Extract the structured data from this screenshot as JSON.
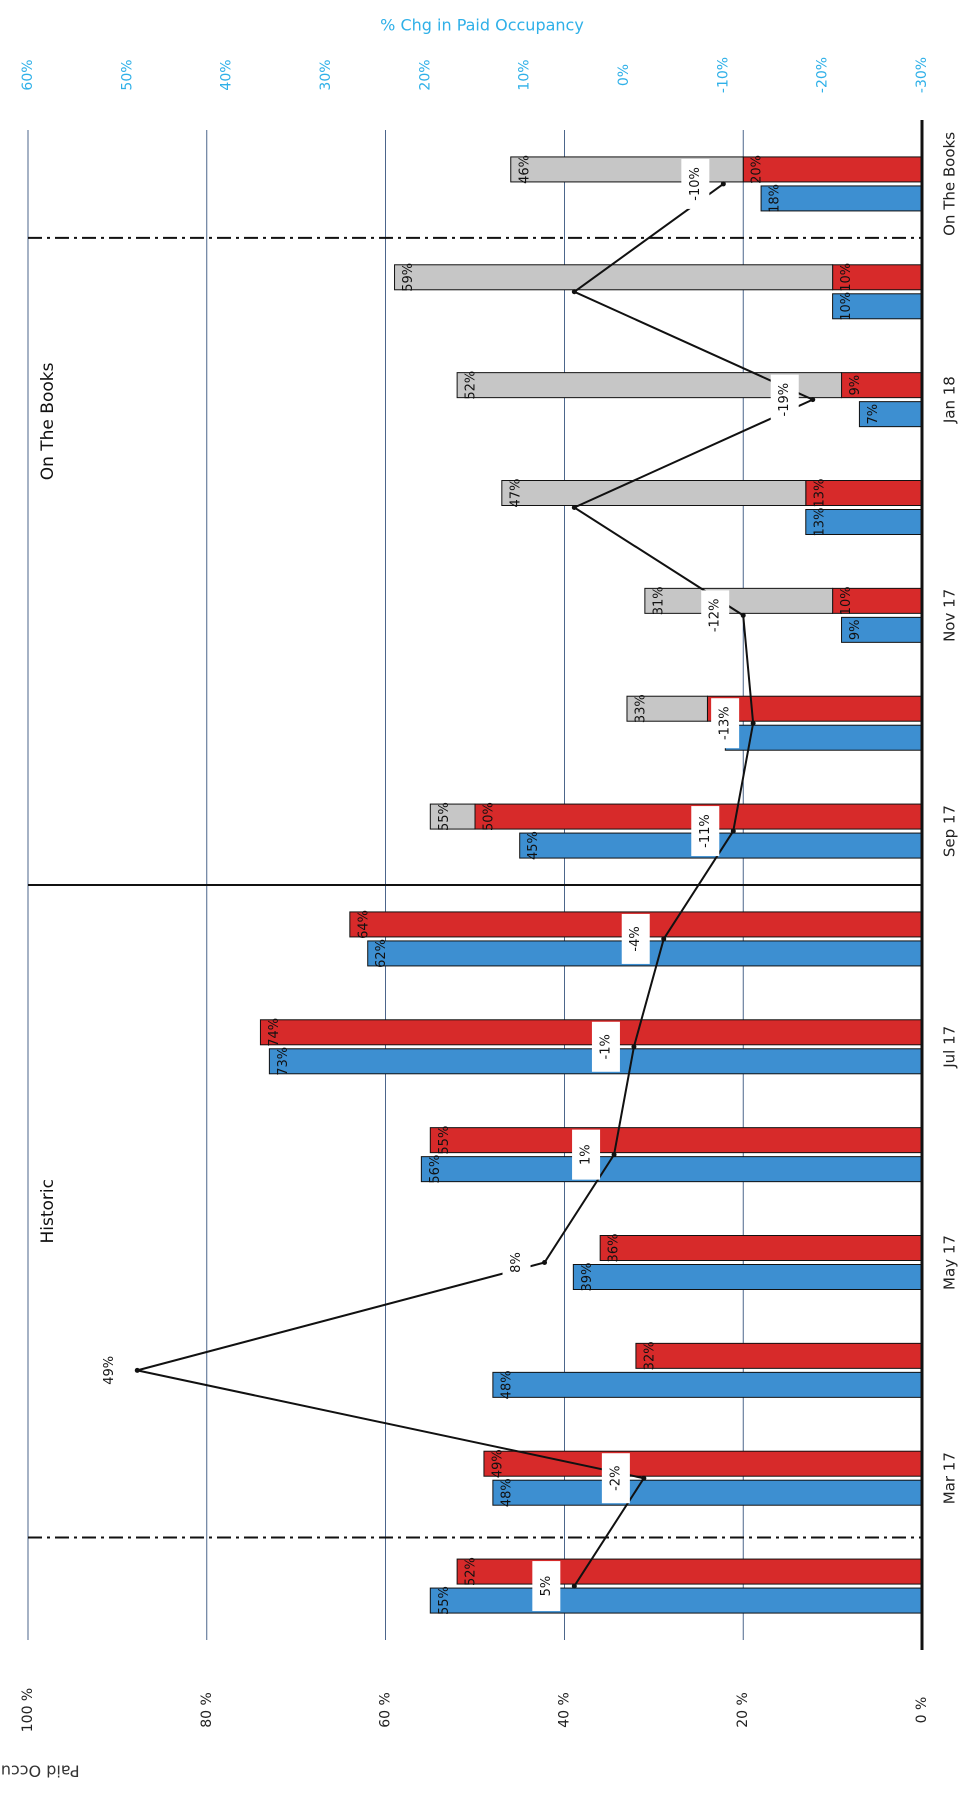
{
  "colors": {
    "last_year": "#3d8fd1",
    "this_year": "#d72a2a",
    "on_books": "#c6c6c6",
    "right_axis": "#2fb0e8",
    "gridline": "#1f3f6e",
    "axis": "#111111"
  },
  "chart_data": {
    "type": "bar",
    "orientation": "page rotated 90 degrees clockwise",
    "left_axis_title": "Paid Occupancy",
    "right_axis_title": "% Chg in Paid Occupancy",
    "left_ticks": [
      "0 %",
      "20 %",
      "40 %",
      "60 %",
      "80 %",
      "100 %"
    ],
    "right_ticks": [
      "-30%",
      "-20%",
      "-10%",
      "0%",
      "10%",
      "20%",
      "30%",
      "40%",
      "50%",
      "60%"
    ],
    "ylim_left": [
      0,
      100
    ],
    "ylim_right": [
      -30,
      60
    ],
    "grid": true,
    "sections": [
      {
        "name": "Historic"
      },
      {
        "name": "On The Books"
      }
    ],
    "groups": [
      {
        "category": "",
        "blue": 55,
        "blue_label": "55%",
        "red": 52,
        "red_label": "52%",
        "grey": null,
        "grey_label": "",
        "chg": 5,
        "chg_label": "5%"
      },
      {
        "category": "Mar 17",
        "blue": 48,
        "blue_label": "48%",
        "red": 49,
        "red_label": "49%",
        "grey": null,
        "grey_label": "",
        "chg": -2,
        "chg_label": "-2%"
      },
      {
        "category": "",
        "blue": 48,
        "blue_label": "48%",
        "red": 32,
        "red_label": "32%",
        "grey": null,
        "grey_label": "",
        "chg": 49,
        "chg_label": "49%"
      },
      {
        "category": "May 17",
        "blue": 39,
        "blue_label": "39%",
        "red": 36,
        "red_label": "36%",
        "grey": null,
        "grey_label": "",
        "chg": 8,
        "chg_label": "8%"
      },
      {
        "category": "",
        "blue": 56,
        "blue_label": "56%",
        "red": 55,
        "red_label": "55%",
        "grey": null,
        "grey_label": "",
        "chg": 1,
        "chg_label": "1%"
      },
      {
        "category": "Jul 17",
        "blue": 73,
        "blue_label": "73%",
        "red": 74,
        "red_label": "74%",
        "grey": null,
        "grey_label": "",
        "chg": -1,
        "chg_label": "-1%"
      },
      {
        "category": "",
        "blue": 62,
        "blue_label": "62%",
        "red": 64,
        "red_label": "64%",
        "grey": null,
        "grey_label": "",
        "chg": -4,
        "chg_label": "-4%"
      },
      {
        "category": "Sep 17",
        "blue": 45,
        "blue_label": "45%",
        "red": 50,
        "red_label": "50%",
        "grey": 55,
        "grey_label": "55%",
        "chg": -11,
        "chg_label": "-11%"
      },
      {
        "category": "",
        "blue": 22,
        "blue_label": "",
        "red": 24,
        "red_label": "",
        "grey": 33,
        "grey_label": "33%",
        "chg": -13,
        "chg_label": "-13%"
      },
      {
        "category": "Nov 17",
        "blue": 9,
        "blue_label": "9%",
        "red": 10,
        "red_label": "10%",
        "grey": 31,
        "grey_label": "31%",
        "chg": -12,
        "chg_label": "-12%"
      },
      {
        "category": "",
        "blue": 13,
        "blue_label": "13%",
        "red": 13,
        "red_label": "13%",
        "grey": 47,
        "grey_label": "47%",
        "chg": 5,
        "chg_label": ""
      },
      {
        "category": "Jan 18",
        "blue": 7,
        "blue_label": "7%",
        "red": 9,
        "red_label": "9%",
        "grey": 52,
        "grey_label": "52%",
        "chg": -19,
        "chg_label": "-19%"
      },
      {
        "category": "",
        "blue": 10,
        "blue_label": "10%",
        "red": 10,
        "red_label": "10%",
        "grey": 59,
        "grey_label": "59%",
        "chg": 5,
        "chg_label": ""
      },
      {
        "category": "On The Books",
        "blue": 18,
        "blue_label": "18%",
        "red": 20,
        "red_label": "20%",
        "grey": 46,
        "grey_label": "46%",
        "chg": -10,
        "chg_label": "-10%"
      }
    ]
  }
}
